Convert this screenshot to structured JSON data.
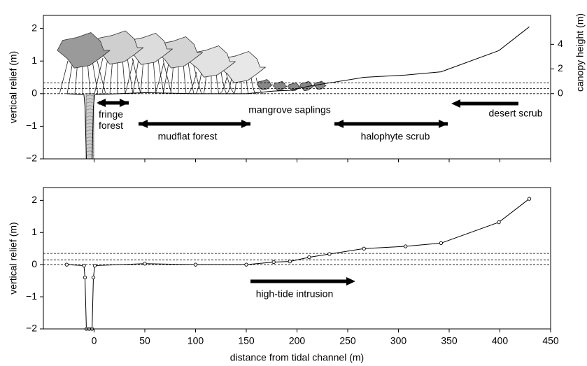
{
  "chart_data": [
    {
      "type": "line",
      "ylabel": "vertical relief (m)",
      "y2label": "canopy height (m)",
      "xlim": [
        -50,
        450
      ],
      "ylim": [
        -2,
        2.4
      ],
      "yticks": [
        2,
        1,
        0,
        {
          "value": -1,
          "label": "−1"
        },
        {
          "value": -2,
          "label": "−2"
        }
      ],
      "y2lim": [
        -5.3,
        6.35
      ],
      "y2ticks": [
        0,
        2,
        4
      ],
      "x": [
        -27,
        -10,
        -9,
        -7.6,
        -4.8,
        -2,
        -0.7,
        0.7,
        50,
        100,
        150,
        177,
        193,
        212,
        232,
        266,
        307,
        342,
        399,
        429
      ],
      "values": [
        0,
        -0.03,
        -0.4,
        -2,
        -2,
        -2,
        -0.4,
        -0.03,
        0.03,
        0,
        0,
        0.08,
        0.1,
        0.23,
        0.33,
        0.5,
        0.57,
        0.67,
        1.32,
        2.05
      ],
      "color": "#000000",
      "reference_lines": [
        0.33,
        0.16,
        0
      ],
      "annotations": [
        "fringe forest",
        "mudflat forest",
        "mangrove saplings",
        "halophyte scrub",
        "desert scrub"
      ]
    },
    {
      "type": "line",
      "markers": true,
      "xlabel": "distance from tidal channel (m)",
      "ylabel": "vertical relief (m)",
      "xlim": [
        -50,
        450
      ],
      "xticks": [
        0,
        50,
        100,
        150,
        200,
        250,
        300,
        350,
        400,
        450
      ],
      "ylim": [
        -2,
        2.4
      ],
      "yticks": [
        2,
        1,
        0,
        {
          "value": -1,
          "label": "−1"
        },
        {
          "value": -2,
          "label": "−2"
        }
      ],
      "x": [
        -27,
        -10,
        -9,
        -7.6,
        -4.8,
        -2,
        -0.7,
        0.7,
        50,
        100,
        150,
        177,
        193,
        212,
        232,
        266,
        307,
        342,
        399,
        429
      ],
      "values": [
        0,
        -0.03,
        -0.4,
        -2,
        -2,
        -2,
        -0.4,
        -0.03,
        0.03,
        0,
        0,
        0.08,
        0.1,
        0.23,
        0.33,
        0.5,
        0.57,
        0.67,
        1.32,
        2.05
      ],
      "color": "#000000",
      "reference_lines": [
        0.35,
        0.15,
        0
      ],
      "annotations": [
        "high-tide intrusion"
      ]
    }
  ]
}
